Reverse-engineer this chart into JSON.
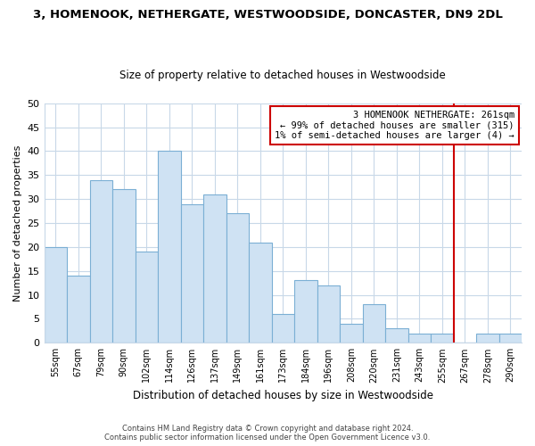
{
  "title": "3, HOMENOOK, NETHERGATE, WESTWOODSIDE, DONCASTER, DN9 2DL",
  "subtitle": "Size of property relative to detached houses in Westwoodside",
  "xlabel": "Distribution of detached houses by size in Westwoodside",
  "ylabel": "Number of detached properties",
  "bar_labels": [
    "55sqm",
    "67sqm",
    "79sqm",
    "90sqm",
    "102sqm",
    "114sqm",
    "126sqm",
    "137sqm",
    "149sqm",
    "161sqm",
    "173sqm",
    "184sqm",
    "196sqm",
    "208sqm",
    "220sqm",
    "231sqm",
    "243sqm",
    "255sqm",
    "267sqm",
    "278sqm",
    "290sqm"
  ],
  "bar_values": [
    20,
    14,
    34,
    32,
    19,
    40,
    29,
    31,
    27,
    21,
    6,
    13,
    12,
    4,
    8,
    3,
    2,
    2,
    0,
    2,
    2
  ],
  "bar_color": "#cfe2f3",
  "bar_edge_color": "#7bafd4",
  "vline_color": "#cc0000",
  "ylim": [
    0,
    50
  ],
  "yticks": [
    0,
    5,
    10,
    15,
    20,
    25,
    30,
    35,
    40,
    45,
    50
  ],
  "annotation_line1": "3 HOMENOOK NETHERGATE: 261sqm",
  "annotation_line2": "← 99% of detached houses are smaller (315)",
  "annotation_line3": "1% of semi-detached houses are larger (4) →",
  "annotation_box_color": "#ffffff",
  "annotation_box_edge": "#cc0000",
  "footer_line1": "Contains HM Land Registry data © Crown copyright and database right 2024.",
  "footer_line2": "Contains public sector information licensed under the Open Government Licence v3.0.",
  "background_color": "#ffffff",
  "grid_color": "#c8d8e8"
}
